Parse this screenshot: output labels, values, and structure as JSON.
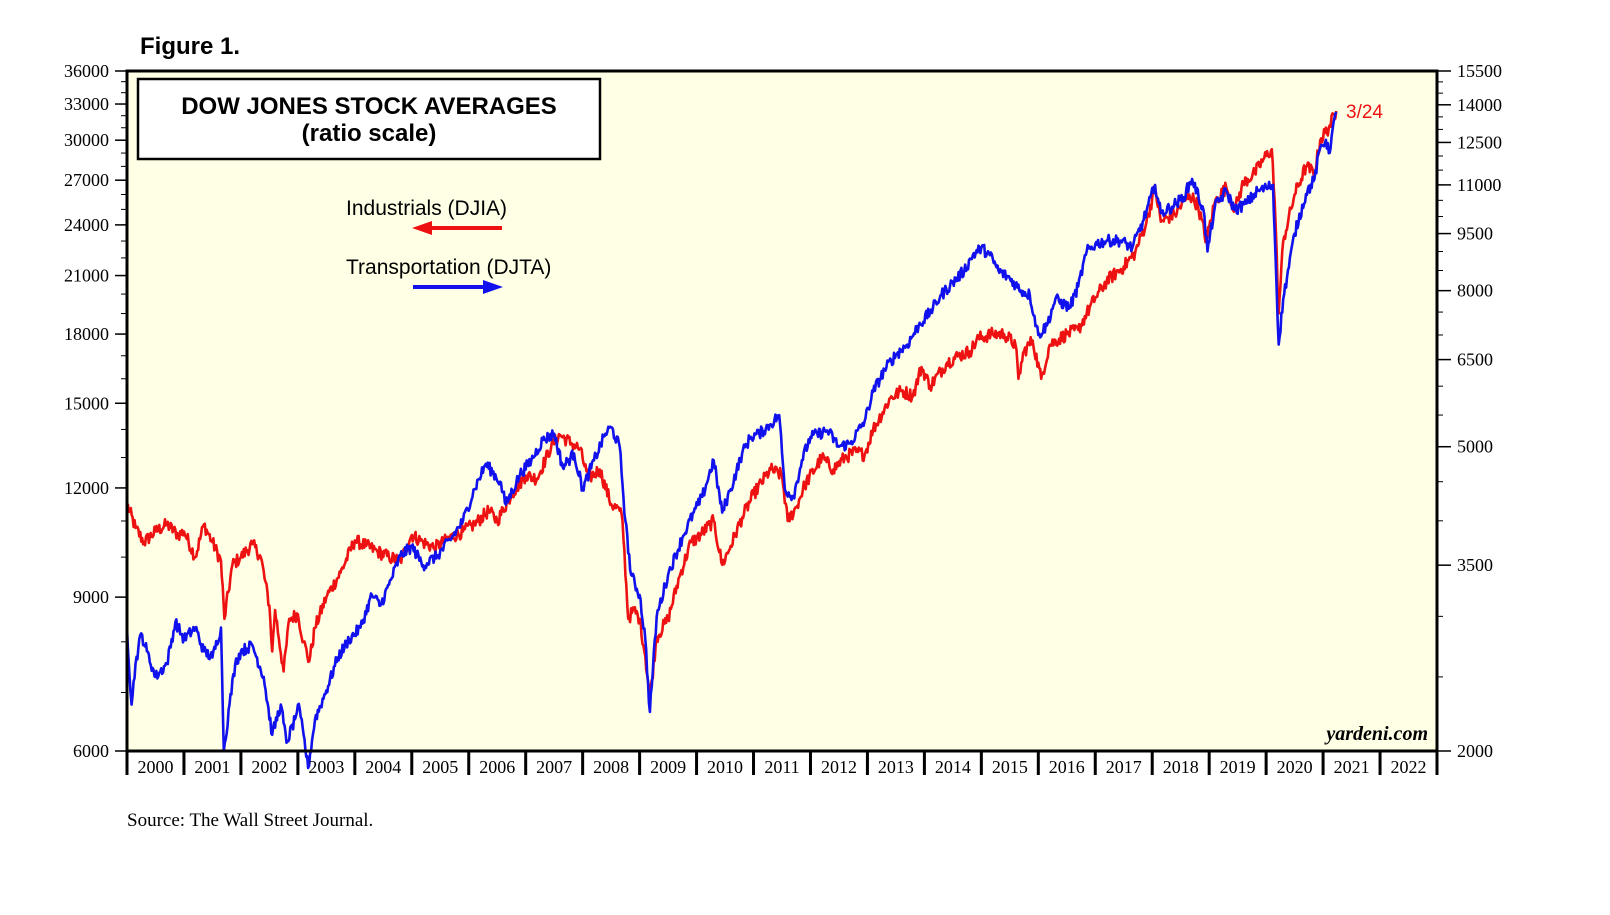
{
  "figure_label": "Figure 1.",
  "source_note": "Source: The Wall Street Journal.",
  "watermark": "yardeni.com",
  "colors": {
    "background": "#FFFFE6",
    "industrials": "#EE1111",
    "transportation": "#1111EE",
    "latest_label": "#EE1111"
  },
  "chart_data": {
    "type": "line",
    "title": "DOW JONES STOCK AVERAGES",
    "subtitle": "(ratio scale)",
    "latest_label": "3/24",
    "log_scale": true,
    "grid": false,
    "x_tick_labels": [
      "2000",
      "2001",
      "2002",
      "2003",
      "2004",
      "2005",
      "2006",
      "2007",
      "2008",
      "2009",
      "2010",
      "2011",
      "2012",
      "2013",
      "2014",
      "2015",
      "2016",
      "2017",
      "2018",
      "2019",
      "2020",
      "2021",
      "2022"
    ],
    "xlim": [
      2000,
      2023
    ],
    "y_left": {
      "lim": [
        6000,
        36000
      ],
      "ticks": [
        6000,
        9000,
        12000,
        15000,
        18000,
        21000,
        24000,
        27000,
        30000,
        33000,
        36000
      ]
    },
    "y_right": {
      "lim": [
        2000,
        15500
      ],
      "ticks": [
        2000,
        3500,
        5000,
        6500,
        8000,
        9500,
        11000,
        12500,
        14000,
        15500
      ]
    },
    "series": [
      {
        "name": "Industrials (DJIA)",
        "axis": "left",
        "arrow": "left",
        "points": [
          [
            2000.0,
            11500
          ],
          [
            2000.15,
            10800
          ],
          [
            2000.3,
            10400
          ],
          [
            2000.5,
            10700
          ],
          [
            2000.7,
            10900
          ],
          [
            2000.9,
            10600
          ],
          [
            2001.0,
            10700
          ],
          [
            2001.2,
            10000
          ],
          [
            2001.35,
            10900
          ],
          [
            2001.5,
            10400
          ],
          [
            2001.65,
            9900
          ],
          [
            2001.71,
            8500
          ],
          [
            2001.85,
            9800
          ],
          [
            2002.0,
            10000
          ],
          [
            2002.2,
            10350
          ],
          [
            2002.35,
            10000
          ],
          [
            2002.5,
            8800
          ],
          [
            2002.55,
            7800
          ],
          [
            2002.6,
            8700
          ],
          [
            2002.75,
            7400
          ],
          [
            2002.85,
            8500
          ],
          [
            2003.0,
            8600
          ],
          [
            2003.1,
            8000
          ],
          [
            2003.2,
            7600
          ],
          [
            2003.3,
            8300
          ],
          [
            2003.5,
            9000
          ],
          [
            2003.75,
            9600
          ],
          [
            2004.0,
            10450
          ],
          [
            2004.2,
            10300
          ],
          [
            2004.4,
            10150
          ],
          [
            2004.6,
            10000
          ],
          [
            2004.8,
            9900
          ],
          [
            2005.0,
            10600
          ],
          [
            2005.2,
            10400
          ],
          [
            2005.4,
            10250
          ],
          [
            2005.7,
            10550
          ],
          [
            2005.9,
            10700
          ],
          [
            2006.1,
            10900
          ],
          [
            2006.35,
            11300
          ],
          [
            2006.5,
            11000
          ],
          [
            2006.75,
            11800
          ],
          [
            2007.0,
            12400
          ],
          [
            2007.2,
            12300
          ],
          [
            2007.45,
            13400
          ],
          [
            2007.6,
            13800
          ],
          [
            2007.8,
            13500
          ],
          [
            2007.95,
            13300
          ],
          [
            2008.1,
            12300
          ],
          [
            2008.3,
            12600
          ],
          [
            2008.5,
            11500
          ],
          [
            2008.65,
            11300
          ],
          [
            2008.7,
            11000
          ],
          [
            2008.8,
            8500
          ],
          [
            2008.9,
            8700
          ],
          [
            2009.0,
            8500
          ],
          [
            2009.1,
            7700
          ],
          [
            2009.18,
            6900
          ],
          [
            2009.3,
            8100
          ],
          [
            2009.5,
            8500
          ],
          [
            2009.7,
            9500
          ],
          [
            2009.9,
            10400
          ],
          [
            2010.0,
            10500
          ],
          [
            2010.3,
            11000
          ],
          [
            2010.45,
            9800
          ],
          [
            2010.6,
            10300
          ],
          [
            2010.8,
            11100
          ],
          [
            2011.0,
            11800
          ],
          [
            2011.3,
            12600
          ],
          [
            2011.5,
            12400
          ],
          [
            2011.6,
            11000
          ],
          [
            2011.75,
            11400
          ],
          [
            2011.9,
            12100
          ],
          [
            2012.2,
            13000
          ],
          [
            2012.4,
            12600
          ],
          [
            2012.6,
            13000
          ],
          [
            2012.8,
            13200
          ],
          [
            2012.95,
            13100
          ],
          [
            2013.1,
            14000
          ],
          [
            2013.4,
            15200
          ],
          [
            2013.6,
            15500
          ],
          [
            2013.8,
            15300
          ],
          [
            2013.95,
            16500
          ],
          [
            2014.1,
            15700
          ],
          [
            2014.4,
            16700
          ],
          [
            2014.6,
            17000
          ],
          [
            2014.8,
            17200
          ],
          [
            2014.95,
            17800
          ],
          [
            2015.2,
            18000
          ],
          [
            2015.4,
            18000
          ],
          [
            2015.6,
            17500
          ],
          [
            2015.65,
            16000
          ],
          [
            2015.75,
            17200
          ],
          [
            2015.9,
            17700
          ],
          [
            2016.05,
            16000
          ],
          [
            2016.2,
            17500
          ],
          [
            2016.5,
            18000
          ],
          [
            2016.7,
            18200
          ],
          [
            2016.85,
            19000
          ],
          [
            2017.0,
            19800
          ],
          [
            2017.2,
            20700
          ],
          [
            2017.5,
            21500
          ],
          [
            2017.7,
            22300
          ],
          [
            2017.9,
            24200
          ],
          [
            2018.05,
            26500
          ],
          [
            2018.15,
            24200
          ],
          [
            2018.4,
            24700
          ],
          [
            2018.65,
            26000
          ],
          [
            2018.8,
            25300
          ],
          [
            2018.95,
            23000
          ],
          [
            2019.1,
            25500
          ],
          [
            2019.3,
            26500
          ],
          [
            2019.45,
            25000
          ],
          [
            2019.6,
            26800
          ],
          [
            2019.8,
            27500
          ],
          [
            2019.95,
            28500
          ],
          [
            2020.1,
            29300
          ],
          [
            2020.15,
            25500
          ],
          [
            2020.22,
            19000
          ],
          [
            2020.3,
            23000
          ],
          [
            2020.5,
            26000
          ],
          [
            2020.7,
            28000
          ],
          [
            2020.85,
            27500
          ],
          [
            2020.95,
            30000
          ],
          [
            2021.1,
            31000
          ],
          [
            2021.23,
            32400
          ]
        ]
      },
      {
        "name": "Transportation (DJTA)",
        "axis": "right",
        "arrow": "right",
        "points": [
          [
            2000.0,
            2900
          ],
          [
            2000.08,
            2300
          ],
          [
            2000.15,
            2600
          ],
          [
            2000.25,
            2850
          ],
          [
            2000.35,
            2700
          ],
          [
            2000.5,
            2500
          ],
          [
            2000.7,
            2600
          ],
          [
            2000.85,
            2950
          ],
          [
            2001.0,
            2800
          ],
          [
            2001.2,
            2900
          ],
          [
            2001.35,
            2700
          ],
          [
            2001.5,
            2650
          ],
          [
            2001.65,
            2900
          ],
          [
            2001.7,
            2000
          ],
          [
            2001.8,
            2300
          ],
          [
            2001.9,
            2600
          ],
          [
            2002.0,
            2700
          ],
          [
            2002.2,
            2750
          ],
          [
            2002.4,
            2500
          ],
          [
            2002.55,
            2100
          ],
          [
            2002.7,
            2300
          ],
          [
            2002.8,
            2050
          ],
          [
            2002.95,
            2200
          ],
          [
            2003.0,
            2300
          ],
          [
            2003.1,
            2100
          ],
          [
            2003.18,
            1900
          ],
          [
            2003.3,
            2200
          ],
          [
            2003.5,
            2400
          ],
          [
            2003.7,
            2650
          ],
          [
            2003.9,
            2800
          ],
          [
            2004.1,
            2900
          ],
          [
            2004.3,
            3200
          ],
          [
            2004.45,
            3100
          ],
          [
            2004.6,
            3300
          ],
          [
            2004.8,
            3600
          ],
          [
            2005.0,
            3700
          ],
          [
            2005.2,
            3500
          ],
          [
            2005.45,
            3600
          ],
          [
            2005.7,
            3800
          ],
          [
            2005.9,
            4000
          ],
          [
            2006.1,
            4400
          ],
          [
            2006.3,
            4750
          ],
          [
            2006.55,
            4500
          ],
          [
            2006.65,
            4200
          ],
          [
            2006.9,
            4600
          ],
          [
            2007.1,
            4800
          ],
          [
            2007.3,
            5100
          ],
          [
            2007.5,
            5200
          ],
          [
            2007.65,
            4700
          ],
          [
            2007.85,
            4900
          ],
          [
            2008.0,
            4400
          ],
          [
            2008.2,
            4800
          ],
          [
            2008.4,
            5200
          ],
          [
            2008.5,
            5300
          ],
          [
            2008.65,
            5000
          ],
          [
            2008.75,
            4000
          ],
          [
            2008.85,
            3400
          ],
          [
            2009.0,
            3200
          ],
          [
            2009.1,
            2800
          ],
          [
            2009.18,
            2250
          ],
          [
            2009.3,
            3000
          ],
          [
            2009.5,
            3400
          ],
          [
            2009.75,
            3800
          ],
          [
            2009.95,
            4100
          ],
          [
            2010.1,
            4300
          ],
          [
            2010.3,
            4800
          ],
          [
            2010.45,
            4100
          ],
          [
            2010.6,
            4400
          ],
          [
            2010.8,
            4900
          ],
          [
            2010.95,
            5150
          ],
          [
            2011.1,
            5200
          ],
          [
            2011.3,
            5350
          ],
          [
            2011.45,
            5500
          ],
          [
            2011.55,
            4400
          ],
          [
            2011.7,
            4300
          ],
          [
            2011.85,
            4800
          ],
          [
            2012.0,
            5150
          ],
          [
            2012.3,
            5250
          ],
          [
            2012.5,
            5000
          ],
          [
            2012.7,
            5050
          ],
          [
            2012.95,
            5400
          ],
          [
            2013.1,
            5900
          ],
          [
            2013.3,
            6300
          ],
          [
            2013.5,
            6600
          ],
          [
            2013.7,
            6800
          ],
          [
            2013.9,
            7200
          ],
          [
            2014.1,
            7500
          ],
          [
            2014.3,
            7900
          ],
          [
            2014.5,
            8200
          ],
          [
            2014.7,
            8500
          ],
          [
            2014.85,
            8900
          ],
          [
            2015.0,
            9100
          ],
          [
            2015.15,
            8900
          ],
          [
            2015.3,
            8500
          ],
          [
            2015.5,
            8300
          ],
          [
            2015.7,
            8000
          ],
          [
            2015.85,
            7900
          ],
          [
            2016.0,
            7000
          ],
          [
            2016.15,
            7200
          ],
          [
            2016.3,
            7800
          ],
          [
            2016.55,
            7600
          ],
          [
            2016.7,
            8100
          ],
          [
            2016.85,
            9000
          ],
          [
            2017.0,
            9200
          ],
          [
            2017.2,
            9300
          ],
          [
            2017.45,
            9300
          ],
          [
            2017.65,
            9100
          ],
          [
            2017.85,
            9900
          ],
          [
            2018.05,
            11000
          ],
          [
            2018.15,
            10100
          ],
          [
            2018.35,
            10300
          ],
          [
            2018.55,
            10600
          ],
          [
            2018.7,
            11200
          ],
          [
            2018.9,
            10200
          ],
          [
            2018.97,
            9000
          ],
          [
            2019.1,
            10300
          ],
          [
            2019.3,
            10800
          ],
          [
            2019.45,
            10200
          ],
          [
            2019.65,
            10400
          ],
          [
            2019.85,
            10800
          ],
          [
            2020.0,
            10900
          ],
          [
            2020.12,
            11000
          ],
          [
            2020.15,
            9500
          ],
          [
            2020.22,
            6800
          ],
          [
            2020.3,
            7800
          ],
          [
            2020.5,
            9500
          ],
          [
            2020.7,
            10700
          ],
          [
            2020.85,
            11200
          ],
          [
            2020.95,
            12300
          ],
          [
            2021.05,
            12600
          ],
          [
            2021.1,
            12100
          ],
          [
            2021.23,
            13700
          ]
        ]
      }
    ]
  }
}
